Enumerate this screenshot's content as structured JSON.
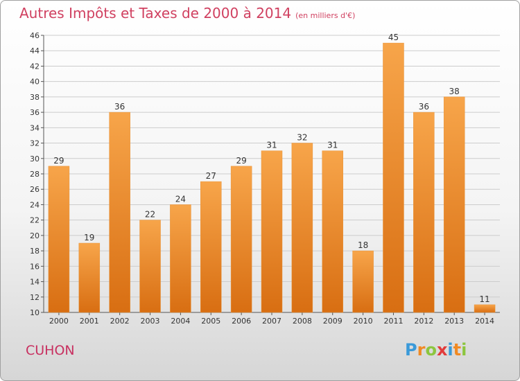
{
  "title": "Autres Impôts et Taxes de 2000 à 2014",
  "title_unit": "(en milliers d'€)",
  "commune": "CUHON",
  "logo": {
    "p": "P",
    "r": "r",
    "o": "o",
    "x": "x",
    "i1": "i",
    "t": "t",
    "i2": "i"
  },
  "colors": {
    "bar_top": "#f7a54a",
    "bar_bottom": "#d86e12",
    "grid": "#cccccc",
    "title": "#d04060"
  },
  "chart_data": {
    "type": "bar",
    "title": "Autres Impôts et Taxes de 2000 à 2014",
    "xlabel": "",
    "ylabel": "",
    "categories": [
      "2000",
      "2001",
      "2002",
      "2003",
      "2004",
      "2005",
      "2006",
      "2007",
      "2008",
      "2009",
      "2010",
      "2011",
      "2012",
      "2013",
      "2014"
    ],
    "values": [
      29,
      19,
      36,
      22,
      24,
      27,
      29,
      31,
      32,
      31,
      18,
      45,
      36,
      38,
      11
    ],
    "ylim": [
      10,
      46
    ],
    "yticks": [
      10,
      12,
      14,
      16,
      18,
      20,
      22,
      24,
      26,
      28,
      30,
      32,
      34,
      36,
      38,
      40,
      42,
      44,
      46
    ],
    "grid": true
  }
}
